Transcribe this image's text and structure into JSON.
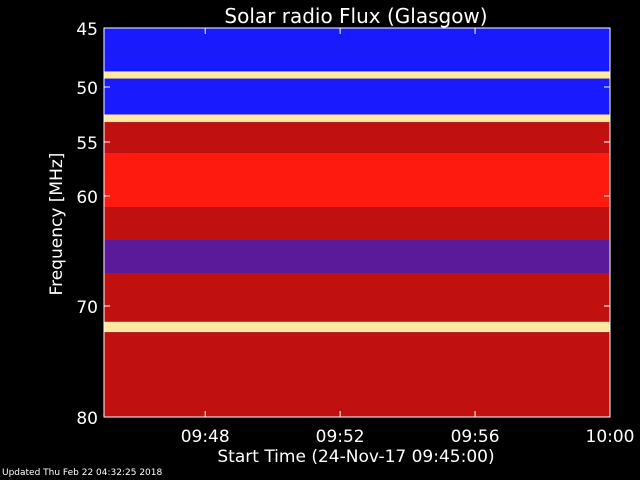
{
  "chart_data": {
    "type": "heatmap",
    "title": "Solar radio Flux (Glasgow)",
    "xlabel": "Start Time (24-Nov-17 09:45:00)",
    "ylabel": "Frequency [MHz]",
    "xlim": [
      "09:45:00",
      "10:00:00"
    ],
    "ylim": [
      45,
      80
    ],
    "xticks": [
      "09:48",
      "09:52",
      "09:56",
      "10:00"
    ],
    "yticks": [
      45,
      50,
      55,
      60,
      70,
      80
    ],
    "ytick_positions": [
      45,
      50,
      55,
      60,
      70,
      80
    ],
    "bands": [
      {
        "from": 45,
        "to": 46.5,
        "level": "low"
      },
      {
        "from": 46.5,
        "to": 48.5,
        "level": "low"
      },
      {
        "from": 48.5,
        "to": 49.2,
        "level": "very-high"
      },
      {
        "from": 49.2,
        "to": 52.5,
        "level": "low"
      },
      {
        "from": 52.5,
        "to": 53.2,
        "level": "very-high"
      },
      {
        "from": 53.2,
        "to": 56,
        "level": "medium"
      },
      {
        "from": 56,
        "to": 61,
        "level": "high"
      },
      {
        "from": 61,
        "to": 64,
        "level": "medium"
      },
      {
        "from": 64,
        "to": 67,
        "level": "low-medium"
      },
      {
        "from": 67,
        "to": 71.5,
        "level": "medium"
      },
      {
        "from": 71.5,
        "to": 72.5,
        "level": "very-high"
      },
      {
        "from": 72.5,
        "to": 80,
        "level": "medium"
      }
    ],
    "colors": {
      "low": "#1a1aff",
      "low-medium": "#5a1a9a",
      "medium": "#c01010",
      "high": "#ff1a10",
      "very-high": "#ffe8a0"
    }
  },
  "footer": {
    "updated": "Updated Thu Feb 22 04:32:25 2018"
  }
}
